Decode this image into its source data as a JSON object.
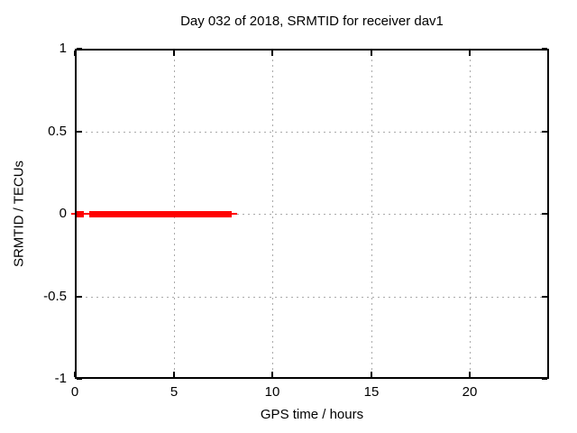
{
  "colors": {
    "background": "#ffffff",
    "border": "#000000",
    "grid": "#aaaaaa",
    "text": "#000000",
    "series": "#ff0000"
  },
  "chart_data": {
    "type": "line",
    "title": "Day 032 of 2018, SRMTID for receiver dav1",
    "xlabel": "GPS time / hours",
    "ylabel": "SRMTID / TECUs",
    "xlim": [
      0,
      24
    ],
    "ylim": [
      -1,
      1
    ],
    "grid": true,
    "legend": "none",
    "xticks": [
      {
        "value": 0,
        "label": "0"
      },
      {
        "value": 5,
        "label": "5"
      },
      {
        "value": 10,
        "label": "10"
      },
      {
        "value": 15,
        "label": "15"
      },
      {
        "value": 20,
        "label": "20"
      }
    ],
    "yticks": [
      {
        "value": 1,
        "label": "1"
      },
      {
        "value": 0.5,
        "label": "0.5"
      },
      {
        "value": 0,
        "label": "0"
      },
      {
        "value": -0.5,
        "label": "-0.5"
      },
      {
        "value": -1,
        "label": "-1"
      }
    ],
    "series": [
      {
        "name": "SRMTID",
        "color": "#ff0000",
        "y_value": 0,
        "thin_line_hours": [
          -0.2,
          8.2
        ],
        "thick_segments_hours": [
          [
            0.05,
            0.45
          ],
          [
            0.75,
            7.95
          ]
        ]
      }
    ]
  }
}
